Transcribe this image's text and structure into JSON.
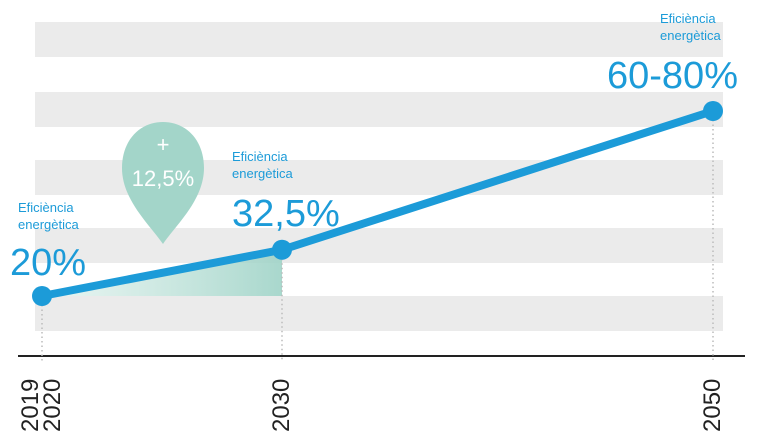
{
  "chart_data": {
    "type": "line",
    "categories": [
      "2019 2020",
      "2030",
      "2050"
    ],
    "values": [
      20,
      32.5,
      70
    ],
    "value_labels": [
      "20%",
      "32,5%",
      "60-80%"
    ],
    "captions": [
      [
        "Eficiència",
        "energètica"
      ],
      [
        "Eficiència",
        "energètica"
      ],
      [
        "Eficiència",
        "energètica"
      ]
    ],
    "annotation": [
      "+",
      "12,5%"
    ],
    "color": "#1c9bd8"
  }
}
